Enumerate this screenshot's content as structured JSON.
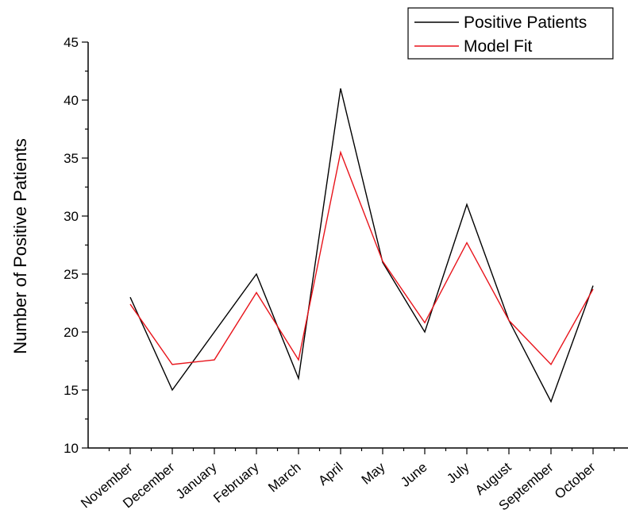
{
  "chart_data": {
    "type": "line",
    "categories": [
      "November",
      "December",
      "January",
      "February",
      "March",
      "April",
      "May",
      "June",
      "July",
      "August",
      "September",
      "October"
    ],
    "series": [
      {
        "name": "Positive Patients",
        "color": "#000000",
        "values": [
          23,
          15,
          20,
          25,
          16,
          41,
          26,
          20,
          31,
          21,
          14,
          24
        ]
      },
      {
        "name": "Model Fit",
        "color": "#e8141b",
        "values": [
          22.4,
          17.2,
          17.6,
          23.4,
          17.6,
          35.5,
          26.1,
          20.8,
          27.7,
          21.0,
          17.2,
          23.7
        ]
      }
    ],
    "title": "",
    "xlabel": "",
    "ylabel": "Number of Positive Patients",
    "ylim": [
      10,
      45
    ],
    "yticks": [
      10,
      15,
      20,
      25,
      30,
      35,
      40,
      45
    ],
    "grid": false,
    "legend_position": "top-right"
  }
}
